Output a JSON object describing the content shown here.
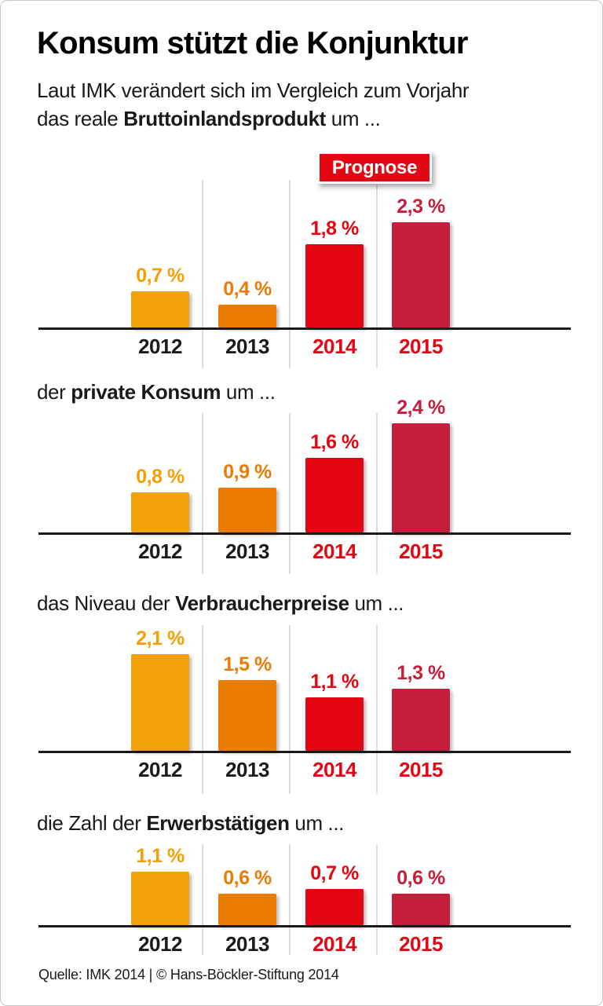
{
  "page": {
    "title": "Konsum stützt die Konjunktur",
    "intro_line1": "Laut IMK verändert sich im Vergleich zum Vorjahr",
    "prognose_label": "Prognose",
    "source": "Quelle: IMK 2014 | © Hans-Böckler-Stiftung 2014"
  },
  "colors": {
    "bar_2012": "#F2A007",
    "bar_2013": "#EA7B05",
    "bar_2014": "#E30613",
    "bar_2015": "#C41E3C",
    "year_label_past": "#1A1A1A",
    "year_label_forecast": "#E30613",
    "gridline": "#DCDCDC",
    "baseline": "#1A1A1A",
    "prognose_bg": "#E30613"
  },
  "chart_data": [
    {
      "type": "bar",
      "heading_prefix": "das reale ",
      "heading_bold": "Bruttoinlandsprodukt",
      "heading_suffix": " um ...",
      "categories": [
        "2012",
        "2013",
        "2014",
        "2015"
      ],
      "values": [
        0.7,
        0.4,
        1.8,
        2.3
      ],
      "value_labels": [
        "0,7 %",
        "0,4 %",
        "1,8 %",
        "2,3 %"
      ],
      "unit": "%",
      "ylim": [
        0,
        2.6
      ],
      "forecast_from_index": 2,
      "grid": "vertical-separators-only"
    },
    {
      "type": "bar",
      "heading_prefix": "der ",
      "heading_bold": "private Konsum",
      "heading_suffix": " um ...",
      "categories": [
        "2012",
        "2013",
        "2014",
        "2015"
      ],
      "values": [
        0.8,
        0.9,
        1.6,
        2.4
      ],
      "value_labels": [
        "0,8 %",
        "0,9 %",
        "1,6 %",
        "2,4 %"
      ],
      "unit": "%",
      "ylim": [
        0,
        2.6
      ],
      "forecast_from_index": 2,
      "grid": "vertical-separators-only"
    },
    {
      "type": "bar",
      "heading_prefix": "das Niveau der ",
      "heading_bold": "Verbraucherpreise",
      "heading_suffix": " um ...",
      "categories": [
        "2012",
        "2013",
        "2014",
        "2015"
      ],
      "values": [
        2.1,
        1.5,
        1.1,
        1.3
      ],
      "value_labels": [
        "2,1 %",
        "1,5 %",
        "1,1 %",
        "1,3 %"
      ],
      "unit": "%",
      "ylim": [
        0,
        2.6
      ],
      "forecast_from_index": 2,
      "grid": "vertical-separators-only"
    },
    {
      "type": "bar",
      "heading_prefix": "die Zahl der ",
      "heading_bold": "Erwerbstätigen",
      "heading_suffix": " um ...",
      "categories": [
        "2012",
        "2013",
        "2014",
        "2015"
      ],
      "values": [
        1.1,
        0.6,
        0.7,
        0.6
      ],
      "value_labels": [
        "1,1 %",
        "0,6 %",
        "0,7 %",
        "0,6 %"
      ],
      "unit": "%",
      "ylim": [
        0,
        2.6
      ],
      "forecast_from_index": 2,
      "grid": "vertical-separators-only"
    }
  ]
}
